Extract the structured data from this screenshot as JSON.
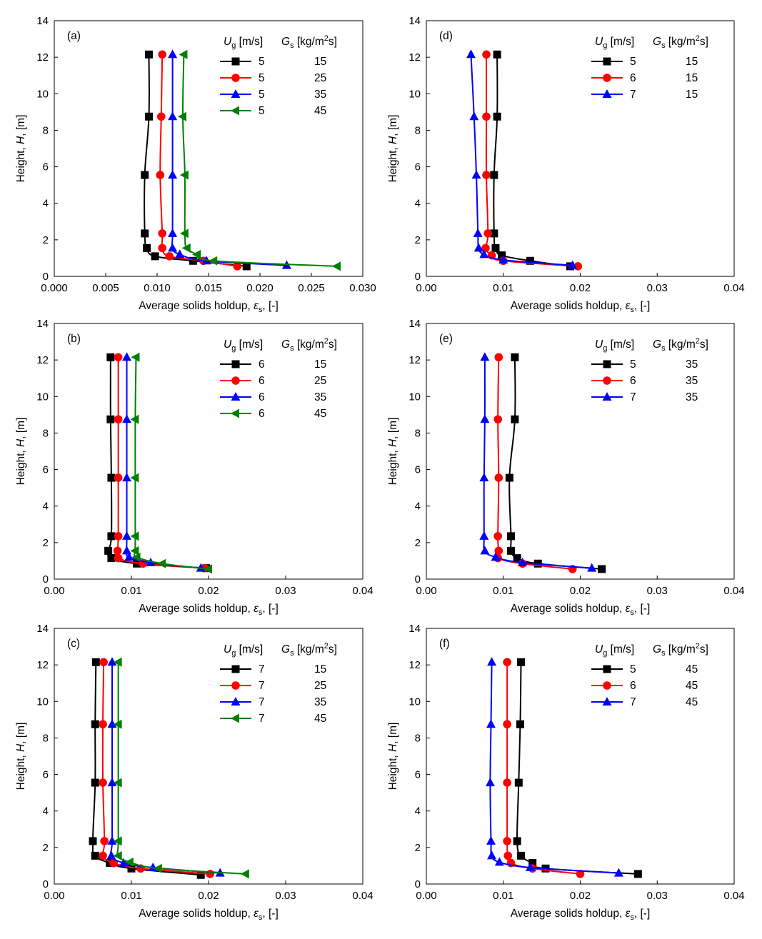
{
  "chart_data": [
    {
      "panel": "(a)",
      "type": "line",
      "xlabel": "Average solids holdup, εs, [-]",
      "ylabel": "Height, H, [m]",
      "xlim": [
        0,
        0.03
      ],
      "ylim": [
        0,
        14
      ],
      "xticks": [
        "0.000",
        "0.005",
        "0.010",
        "0.015",
        "0.020",
        "0.025",
        "0.030"
      ],
      "yticks": [
        "0",
        "2",
        "4",
        "6",
        "8",
        "10",
        "12",
        "14"
      ],
      "legend_headers": [
        "Ug [m/s]",
        "Gs [kg/m2s]"
      ],
      "series": [
        {
          "ug": "5",
          "gs": "15",
          "color": "#000000",
          "marker": "square",
          "x": [
            0.0092,
            0.0092,
            0.0088,
            0.0088,
            0.009,
            0.0098,
            0.0135,
            0.0187
          ],
          "y": [
            12.15,
            8.75,
            5.55,
            2.35,
            1.55,
            1.1,
            0.85,
            0.55
          ]
        },
        {
          "ug": "5",
          "gs": "25",
          "color": "#ff0000",
          "marker": "circle",
          "x": [
            0.0105,
            0.0104,
            0.0103,
            0.0105,
            0.0105,
            0.0112,
            0.0145,
            0.0178
          ],
          "y": [
            12.15,
            8.75,
            5.55,
            2.35,
            1.55,
            1.1,
            0.85,
            0.55
          ]
        },
        {
          "ug": "5",
          "gs": "35",
          "color": "#0000ff",
          "marker": "triangle",
          "x": [
            0.0115,
            0.0115,
            0.0115,
            0.0115,
            0.0115,
            0.0122,
            0.0148,
            0.0226
          ],
          "y": [
            12.15,
            8.75,
            5.55,
            2.35,
            1.55,
            1.2,
            0.85,
            0.6
          ]
        },
        {
          "ug": "5",
          "gs": "45",
          "color": "#008000",
          "marker": "triangle-left",
          "x": [
            0.0126,
            0.0125,
            0.0127,
            0.0127,
            0.0129,
            0.0139,
            0.0155,
            0.0275
          ],
          "y": [
            12.15,
            8.75,
            5.55,
            2.35,
            1.55,
            1.2,
            0.85,
            0.55
          ]
        }
      ]
    },
    {
      "panel": "(b)",
      "type": "line",
      "xlabel": "Average solids holdup, εs, [-]",
      "ylabel": "Height, H, [m]",
      "xlim": [
        0,
        0.04
      ],
      "ylim": [
        0,
        14
      ],
      "xticks": [
        "0.00",
        "0.01",
        "0.02",
        "0.03",
        "0.04"
      ],
      "yticks": [
        "0",
        "2",
        "4",
        "6",
        "8",
        "10",
        "12",
        "14"
      ],
      "legend_headers": [
        "Ug [m/s]",
        "Gs [kg/m2s]"
      ],
      "series": [
        {
          "ug": "6",
          "gs": "15",
          "color": "#000000",
          "marker": "square",
          "x": [
            0.0073,
            0.0073,
            0.0074,
            0.0074,
            0.007,
            0.0074,
            0.0107,
            0.0197
          ],
          "y": [
            12.15,
            8.75,
            5.55,
            2.35,
            1.55,
            1.15,
            0.85,
            0.6
          ]
        },
        {
          "ug": "6",
          "gs": "25",
          "color": "#ff0000",
          "marker": "circle",
          "x": [
            0.0083,
            0.0083,
            0.0083,
            0.0083,
            0.0082,
            0.0083,
            0.0115,
            0.0195
          ],
          "y": [
            12.15,
            8.75,
            5.55,
            2.35,
            1.55,
            1.15,
            0.85,
            0.6
          ]
        },
        {
          "ug": "6",
          "gs": "35",
          "color": "#0000ff",
          "marker": "triangle",
          "x": [
            0.0094,
            0.0094,
            0.0094,
            0.0094,
            0.0094,
            0.0097,
            0.0125,
            0.019
          ],
          "y": [
            12.15,
            8.75,
            5.55,
            2.35,
            1.55,
            1.2,
            0.9,
            0.6
          ]
        },
        {
          "ug": "6",
          "gs": "45",
          "color": "#008000",
          "marker": "triangle-left",
          "x": [
            0.0106,
            0.0105,
            0.0105,
            0.0105,
            0.0105,
            0.0107,
            0.014,
            0.02
          ],
          "y": [
            12.15,
            8.75,
            5.55,
            2.35,
            1.55,
            1.2,
            0.85,
            0.55
          ]
        }
      ]
    },
    {
      "panel": "(c)",
      "type": "line",
      "xlabel": "Average solids holdup, εs, [-]",
      "ylabel": "Height, H, [m]",
      "xlim": [
        0,
        0.04
      ],
      "ylim": [
        0,
        14
      ],
      "xticks": [
        "0.00",
        "0.01",
        "0.02",
        "0.03",
        "0.04"
      ],
      "yticks": [
        "0",
        "2",
        "4",
        "6",
        "8",
        "10",
        "12",
        "14"
      ],
      "legend_headers": [
        "Ug [m/s]",
        "Gs [kg/m2s]"
      ],
      "series": [
        {
          "ug": "7",
          "gs": "15",
          "color": "#000000",
          "marker": "square",
          "x": [
            0.0054,
            0.0053,
            0.0053,
            0.005,
            0.0053,
            0.0072,
            0.01,
            0.019
          ],
          "y": [
            12.15,
            8.75,
            5.55,
            2.35,
            1.55,
            1.15,
            0.85,
            0.5
          ]
        },
        {
          "ug": "7",
          "gs": "25",
          "color": "#ff0000",
          "marker": "circle",
          "x": [
            0.0064,
            0.0063,
            0.0063,
            0.0065,
            0.0063,
            0.0077,
            0.0112,
            0.0202
          ],
          "y": [
            12.15,
            8.75,
            5.55,
            2.35,
            1.55,
            1.15,
            0.85,
            0.55
          ]
        },
        {
          "ug": "7",
          "gs": "35",
          "color": "#0000ff",
          "marker": "triangle",
          "x": [
            0.0075,
            0.0075,
            0.0075,
            0.0075,
            0.0074,
            0.009,
            0.0128,
            0.0215
          ],
          "y": [
            12.15,
            8.75,
            5.55,
            2.35,
            1.55,
            1.15,
            0.9,
            0.6
          ]
        },
        {
          "ug": "7",
          "gs": "45",
          "color": "#008000",
          "marker": "triangle-left",
          "x": [
            0.0083,
            0.0083,
            0.0083,
            0.0083,
            0.0083,
            0.0098,
            0.0135,
            0.0248
          ],
          "y": [
            12.15,
            8.75,
            5.55,
            2.35,
            1.55,
            1.2,
            0.85,
            0.55
          ]
        }
      ]
    },
    {
      "panel": "(d)",
      "type": "line",
      "xlabel": "Average solids holdup, εs, [-]",
      "ylabel": "Height, H, [m]",
      "xlim": [
        0,
        0.04
      ],
      "ylim": [
        0,
        14
      ],
      "xticks": [
        "0.00",
        "0.01",
        "0.02",
        "0.03",
        "0.04"
      ],
      "yticks": [
        "0",
        "2",
        "4",
        "6",
        "8",
        "10",
        "12",
        "14"
      ],
      "legend_headers": [
        "Ug [m/s]",
        "Gs [kg/m2s]"
      ],
      "series": [
        {
          "ug": "5",
          "gs": "15",
          "color": "#000000",
          "marker": "square",
          "x": [
            0.0092,
            0.0092,
            0.0088,
            0.0088,
            0.009,
            0.0098,
            0.0135,
            0.0187
          ],
          "y": [
            12.15,
            8.75,
            5.55,
            2.35,
            1.55,
            1.15,
            0.85,
            0.55
          ]
        },
        {
          "ug": "6",
          "gs": "15",
          "color": "#ff0000",
          "marker": "circle",
          "x": [
            0.0078,
            0.0078,
            0.0078,
            0.008,
            0.0077,
            0.0085,
            0.01,
            0.0197
          ],
          "y": [
            12.15,
            8.75,
            5.55,
            2.35,
            1.55,
            1.15,
            0.85,
            0.55
          ]
        },
        {
          "ug": "7",
          "gs": "15",
          "color": "#0000ff",
          "marker": "triangle",
          "x": [
            0.0058,
            0.0062,
            0.0065,
            0.0067,
            0.0068,
            0.0075,
            0.01,
            0.019
          ],
          "y": [
            12.15,
            8.75,
            5.55,
            2.35,
            1.55,
            1.2,
            0.9,
            0.6
          ]
        }
      ]
    },
    {
      "panel": "(e)",
      "type": "line",
      "xlabel": "Average solids holdup, εs, [-]",
      "ylabel": "Height, H, [m]",
      "xlim": [
        0,
        0.04
      ],
      "ylim": [
        0,
        14
      ],
      "xticks": [
        "0.00",
        "0.01",
        "0.02",
        "0.03",
        "0.04"
      ],
      "yticks": [
        "0",
        "2",
        "4",
        "6",
        "8",
        "10",
        "12",
        "14"
      ],
      "legend_headers": [
        "Ug [m/s]",
        "Gs [kg/m2s]"
      ],
      "series": [
        {
          "ug": "5",
          "gs": "35",
          "color": "#000000",
          "marker": "square",
          "x": [
            0.0115,
            0.0115,
            0.0108,
            0.011,
            0.011,
            0.0118,
            0.0145,
            0.0228
          ],
          "y": [
            12.15,
            8.75,
            5.55,
            2.35,
            1.55,
            1.15,
            0.85,
            0.55
          ]
        },
        {
          "ug": "6",
          "gs": "35",
          "color": "#ff0000",
          "marker": "circle",
          "x": [
            0.0094,
            0.0093,
            0.0094,
            0.0093,
            0.0094,
            0.0093,
            0.0125,
            0.019
          ],
          "y": [
            12.15,
            8.75,
            5.55,
            2.35,
            1.55,
            1.15,
            0.85,
            0.55
          ]
        },
        {
          "ug": "7",
          "gs": "35",
          "color": "#0000ff",
          "marker": "triangle",
          "x": [
            0.0076,
            0.0076,
            0.0075,
            0.0075,
            0.0076,
            0.009,
            0.0125,
            0.0215
          ],
          "y": [
            12.15,
            8.75,
            5.55,
            2.35,
            1.55,
            1.2,
            0.9,
            0.6
          ]
        }
      ]
    },
    {
      "panel": "(f)",
      "type": "line",
      "xlabel": "Average solids holdup, εs, [-]",
      "ylabel": "Height, H, [m]",
      "xlim": [
        0,
        0.04
      ],
      "ylim": [
        0,
        14
      ],
      "xticks": [
        "0.00",
        "0.01",
        "0.02",
        "0.03",
        "0.04"
      ],
      "yticks": [
        "0",
        "2",
        "4",
        "6",
        "8",
        "10",
        "12",
        "14"
      ],
      "legend_headers": [
        "Ug [m/s]",
        "Gs [kg/m2s]"
      ],
      "series": [
        {
          "ug": "5",
          "gs": "45",
          "color": "#000000",
          "marker": "square",
          "x": [
            0.0123,
            0.0122,
            0.012,
            0.0118,
            0.0123,
            0.0138,
            0.0155,
            0.0275
          ],
          "y": [
            12.15,
            8.75,
            5.55,
            2.35,
            1.55,
            1.15,
            0.85,
            0.55
          ]
        },
        {
          "ug": "6",
          "gs": "45",
          "color": "#ff0000",
          "marker": "circle",
          "x": [
            0.0105,
            0.0105,
            0.0105,
            0.0105,
            0.0106,
            0.011,
            0.0138,
            0.02
          ],
          "y": [
            12.15,
            8.75,
            5.55,
            2.35,
            1.55,
            1.15,
            0.85,
            0.55
          ]
        },
        {
          "ug": "7",
          "gs": "45",
          "color": "#0000ff",
          "marker": "triangle",
          "x": [
            0.0085,
            0.0084,
            0.0083,
            0.0084,
            0.0085,
            0.0095,
            0.0135,
            0.025
          ],
          "y": [
            12.15,
            8.75,
            5.55,
            2.35,
            1.55,
            1.2,
            0.9,
            0.6
          ]
        }
      ]
    }
  ]
}
